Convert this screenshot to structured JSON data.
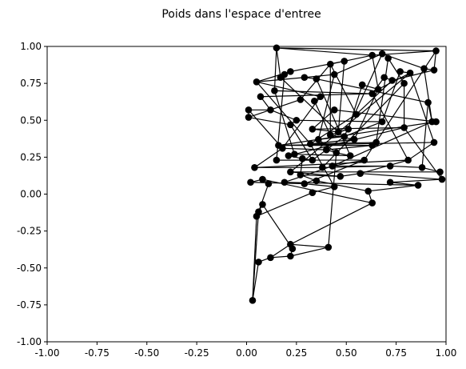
{
  "chart_data": {
    "type": "scatter",
    "title": "Poids dans l'espace d'entree",
    "xlabel": "",
    "ylabel": "",
    "xlim": [
      -1.0,
      1.0
    ],
    "ylim": [
      -1.0,
      1.0
    ],
    "grid": false,
    "xticks": [
      "-1.00",
      "-0.75",
      "-0.50",
      "-0.25",
      "0.00",
      "0.25",
      "0.50",
      "0.75",
      "1.00"
    ],
    "yticks": [
      "-1.00",
      "-0.75",
      "-0.50",
      "-0.25",
      "0.00",
      "0.25",
      "0.50",
      "0.75",
      "1.00"
    ],
    "marker_color": "#000000",
    "line_color": "#000000",
    "points": [
      [
        0.15,
        0.99
      ],
      [
        0.95,
        0.97
      ],
      [
        0.63,
        0.94
      ],
      [
        0.68,
        0.95
      ],
      [
        0.71,
        0.92
      ],
      [
        0.49,
        0.9
      ],
      [
        0.42,
        0.88
      ],
      [
        0.89,
        0.85
      ],
      [
        0.94,
        0.84
      ],
      [
        0.77,
        0.83
      ],
      [
        0.82,
        0.82
      ],
      [
        0.22,
        0.83
      ],
      [
        0.19,
        0.81
      ],
      [
        0.17,
        0.79
      ],
      [
        0.44,
        0.81
      ],
      [
        0.29,
        0.79
      ],
      [
        0.35,
        0.78
      ],
      [
        0.69,
        0.79
      ],
      [
        0.73,
        0.77
      ],
      [
        0.79,
        0.75
      ],
      [
        0.05,
        0.76
      ],
      [
        0.58,
        0.74
      ],
      [
        0.66,
        0.71
      ],
      [
        0.14,
        0.7
      ],
      [
        0.63,
        0.68
      ],
      [
        0.37,
        0.66
      ],
      [
        0.07,
        0.66
      ],
      [
        0.27,
        0.64
      ],
      [
        0.34,
        0.63
      ],
      [
        0.91,
        0.62
      ],
      [
        0.01,
        0.57
      ],
      [
        0.12,
        0.57
      ],
      [
        0.44,
        0.57
      ],
      [
        0.55,
        0.54
      ],
      [
        0.93,
        0.49
      ],
      [
        0.95,
        0.49
      ],
      [
        0.01,
        0.52
      ],
      [
        0.22,
        0.47
      ],
      [
        0.25,
        0.5
      ],
      [
        0.68,
        0.49
      ],
      [
        0.79,
        0.45
      ],
      [
        0.33,
        0.44
      ],
      [
        0.46,
        0.42
      ],
      [
        0.51,
        0.44
      ],
      [
        0.42,
        0.4
      ],
      [
        0.49,
        0.39
      ],
      [
        0.36,
        0.37
      ],
      [
        0.54,
        0.37
      ],
      [
        0.32,
        0.34
      ],
      [
        0.65,
        0.35
      ],
      [
        0.94,
        0.35
      ],
      [
        0.16,
        0.33
      ],
      [
        0.63,
        0.33
      ],
      [
        0.18,
        0.31
      ],
      [
        0.4,
        0.3
      ],
      [
        0.45,
        0.28
      ],
      [
        0.52,
        0.26
      ],
      [
        0.24,
        0.27
      ],
      [
        0.21,
        0.26
      ],
      [
        0.28,
        0.24
      ],
      [
        0.33,
        0.23
      ],
      [
        0.15,
        0.23
      ],
      [
        0.59,
        0.23
      ],
      [
        0.81,
        0.23
      ],
      [
        0.04,
        0.18
      ],
      [
        0.38,
        0.18
      ],
      [
        0.43,
        0.19
      ],
      [
        0.72,
        0.19
      ],
      [
        0.88,
        0.18
      ],
      [
        0.97,
        0.15
      ],
      [
        0.22,
        0.15
      ],
      [
        0.27,
        0.13
      ],
      [
        0.47,
        0.12
      ],
      [
        0.57,
        0.14
      ],
      [
        0.98,
        0.1
      ],
      [
        0.02,
        0.08
      ],
      [
        0.08,
        0.1
      ],
      [
        0.11,
        0.07
      ],
      [
        0.19,
        0.08
      ],
      [
        0.29,
        0.07
      ],
      [
        0.35,
        0.09
      ],
      [
        0.44,
        0.05
      ],
      [
        0.72,
        0.08
      ],
      [
        0.86,
        0.06
      ],
      [
        0.33,
        0.01
      ],
      [
        0.61,
        0.02
      ],
      [
        0.63,
        -0.06
      ],
      [
        0.08,
        -0.07
      ],
      [
        0.06,
        -0.12
      ],
      [
        0.05,
        -0.15
      ],
      [
        0.22,
        -0.34
      ],
      [
        0.23,
        -0.37
      ],
      [
        0.41,
        -0.36
      ],
      [
        0.22,
        -0.42
      ],
      [
        0.12,
        -0.43
      ],
      [
        0.06,
        -0.46
      ],
      [
        0.03,
        -0.72
      ]
    ],
    "edges": [
      [
        0,
        1
      ],
      [
        0,
        2
      ],
      [
        0,
        13
      ],
      [
        0,
        23
      ],
      [
        1,
        2
      ],
      [
        1,
        8
      ],
      [
        1,
        62
      ],
      [
        2,
        5
      ],
      [
        2,
        22
      ],
      [
        3,
        7
      ],
      [
        3,
        14
      ],
      [
        3,
        45
      ],
      [
        4,
        19
      ],
      [
        4,
        49
      ],
      [
        5,
        6
      ],
      [
        5,
        11
      ],
      [
        5,
        42
      ],
      [
        6,
        27
      ],
      [
        6,
        33
      ],
      [
        7,
        8
      ],
      [
        7,
        34
      ],
      [
        8,
        18
      ],
      [
        9,
        10
      ],
      [
        9,
        39
      ],
      [
        10,
        22
      ],
      [
        10,
        50
      ],
      [
        11,
        12
      ],
      [
        11,
        20
      ],
      [
        12,
        13
      ],
      [
        12,
        61
      ],
      [
        14,
        15
      ],
      [
        14,
        46
      ],
      [
        15,
        16
      ],
      [
        15,
        20
      ],
      [
        16,
        29
      ],
      [
        16,
        56
      ],
      [
        17,
        18
      ],
      [
        17,
        24
      ],
      [
        18,
        33
      ],
      [
        19,
        40
      ],
      [
        19,
        65
      ],
      [
        20,
        25
      ],
      [
        21,
        22
      ],
      [
        21,
        43
      ],
      [
        22,
        47
      ],
      [
        23,
        24
      ],
      [
        23,
        57
      ],
      [
        24,
        26
      ],
      [
        25,
        28
      ],
      [
        25,
        53
      ],
      [
        26,
        31
      ],
      [
        27,
        36
      ],
      [
        28,
        44
      ],
      [
        29,
        34
      ],
      [
        29,
        68
      ],
      [
        30,
        31
      ],
      [
        30,
        36
      ],
      [
        31,
        38
      ],
      [
        32,
        35
      ],
      [
        32,
        41
      ],
      [
        33,
        48
      ],
      [
        34,
        35
      ],
      [
        35,
        51
      ],
      [
        36,
        37
      ],
      [
        37,
        38
      ],
      [
        37,
        60
      ],
      [
        38,
        39
      ],
      [
        39,
        45
      ],
      [
        40,
        41
      ],
      [
        40,
        58
      ],
      [
        41,
        42
      ],
      [
        42,
        43
      ],
      [
        43,
        44
      ],
      [
        44,
        47
      ],
      [
        45,
        46
      ],
      [
        46,
        55
      ],
      [
        47,
        48
      ],
      [
        48,
        49
      ],
      [
        49,
        52
      ],
      [
        50,
        51
      ],
      [
        50,
        63
      ],
      [
        51,
        52
      ],
      [
        52,
        54
      ],
      [
        53,
        54
      ],
      [
        53,
        64
      ],
      [
        54,
        55
      ],
      [
        55,
        56
      ],
      [
        56,
        57
      ],
      [
        57,
        58
      ],
      [
        58,
        59
      ],
      [
        59,
        60
      ],
      [
        59,
        71
      ],
      [
        60,
        61
      ],
      [
        61,
        62
      ],
      [
        62,
        66
      ],
      [
        63,
        64
      ],
      [
        63,
        73
      ],
      [
        64,
        65
      ],
      [
        65,
        67
      ],
      [
        66,
        67
      ],
      [
        66,
        78
      ],
      [
        67,
        68
      ],
      [
        68,
        69
      ],
      [
        69,
        70
      ],
      [
        69,
        74
      ],
      [
        70,
        72
      ],
      [
        71,
        72
      ],
      [
        71,
        80
      ],
      [
        72,
        73
      ],
      [
        73,
        74
      ],
      [
        74,
        82
      ],
      [
        75,
        76
      ],
      [
        75,
        79
      ],
      [
        76,
        77
      ],
      [
        76,
        86
      ],
      [
        77,
        88
      ],
      [
        78,
        79
      ],
      [
        78,
        83
      ],
      [
        79,
        81
      ],
      [
        80,
        85
      ],
      [
        81,
        84
      ],
      [
        82,
        83
      ],
      [
        83,
        85
      ],
      [
        84,
        89
      ],
      [
        85,
        86
      ],
      [
        86,
        90
      ],
      [
        87,
        88
      ],
      [
        87,
        91
      ],
      [
        88,
        89
      ],
      [
        89,
        96
      ],
      [
        90,
        94
      ],
      [
        90,
        92
      ],
      [
        91,
        93
      ],
      [
        92,
        93
      ],
      [
        93,
        94
      ],
      [
        94,
        95
      ],
      [
        95,
        96
      ],
      [
        96,
        88
      ],
      [
        62,
        79
      ],
      [
        48,
        81
      ],
      [
        45,
        60
      ],
      [
        55,
        92
      ],
      [
        30,
        53
      ],
      [
        24,
        63
      ],
      [
        10,
        70
      ],
      [
        13,
        42
      ],
      [
        6,
        44
      ],
      [
        40,
        74
      ],
      [
        34,
        66
      ],
      [
        20,
        48
      ]
    ]
  }
}
